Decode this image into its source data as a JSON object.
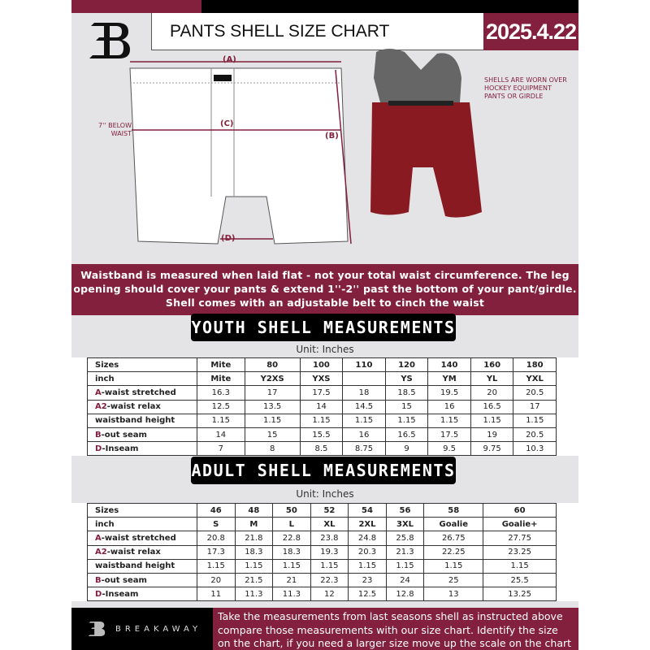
{
  "header": {
    "title": "PANTS SHELL SIZE CHART",
    "date": "2025.4.22",
    "logo_letter": "B"
  },
  "diagram": {
    "label_a": "(A)",
    "label_b": "(B)",
    "label_c": "(C)",
    "label_d": "(D)",
    "below_waist": "7'' BELOW WAIST",
    "note": "SHELLS ARE WORN OVER HOCKEY EQUIPMENT PANTS OR GIRDLE"
  },
  "banner": {
    "line1": "Waistband is measured when laid flat - not your total waist circumference. The leg",
    "line2": "opening should cover your pants & extend 1''-2'' past the bottom of your pant/girdle.",
    "line3": "Shell comes with an adjustable belt to cinch the waist"
  },
  "youth": {
    "title": "YOUTH SHELL MEASUREMENTS",
    "unit": "Unit: Inches",
    "rows": [
      {
        "prefix": "",
        "label": "Sizes",
        "values": [
          "Mite",
          "80",
          "100",
          "110",
          "120",
          "140",
          "160",
          "180"
        ]
      },
      {
        "prefix": "",
        "label": "inch",
        "values": [
          "Mite",
          "Y2XS",
          "YXS",
          "",
          "YS",
          "YM",
          "YL",
          "YXL"
        ]
      },
      {
        "prefix": "A",
        "label": "-waist stretched",
        "values": [
          "16.3",
          "17",
          "17.5",
          "18",
          "18.5",
          "19.5",
          "20",
          "20.5"
        ]
      },
      {
        "prefix": "A2",
        "label": "-waist relax",
        "values": [
          "12.5",
          "13.5",
          "14",
          "14.5",
          "15",
          "16",
          "16.5",
          "17"
        ]
      },
      {
        "prefix": "",
        "label": "waistband height",
        "values": [
          "1.15",
          "1.15",
          "1.15",
          "1.15",
          "1.15",
          "1.15",
          "1.15",
          "1.15"
        ]
      },
      {
        "prefix": "B",
        "label": "-out seam",
        "values": [
          "14",
          "15",
          "15.5",
          "16",
          "16.5",
          "17.5",
          "19",
          "20.5"
        ]
      },
      {
        "prefix": "D",
        "label": "-Inseam",
        "values": [
          "7",
          "8",
          "8.5",
          "8.75",
          "9",
          "9.5",
          "9.75",
          "10.3"
        ]
      }
    ]
  },
  "adult": {
    "title": "ADULT SHELL MEASUREMENTS",
    "unit": "Unit: Inches",
    "rows": [
      {
        "prefix": "",
        "label": "Sizes",
        "values": [
          "46",
          "48",
          "50",
          "52",
          "54",
          "56",
          "58",
          "60"
        ]
      },
      {
        "prefix": "",
        "label": "inch",
        "values": [
          "S",
          "M",
          "L",
          "XL",
          "2XL",
          "3XL",
          "Goalie",
          "Goalie+"
        ]
      },
      {
        "prefix": "A",
        "label": "-waist stretched",
        "values": [
          "20.8",
          "21.8",
          "22.8",
          "23.8",
          "24.8",
          "25.8",
          "26.75",
          "27.75"
        ]
      },
      {
        "prefix": "A2",
        "label": "-waist relax",
        "values": [
          "17.3",
          "18.3",
          "18.3",
          "19.3",
          "20.3",
          "21.3",
          "22.25",
          "23.25"
        ]
      },
      {
        "prefix": "",
        "label": "waistband height",
        "values": [
          "1.15",
          "1.15",
          "1.15",
          "1.15",
          "1.15",
          "1.15",
          "1.15",
          "1.15"
        ]
      },
      {
        "prefix": "B",
        "label": "-out seam",
        "values": [
          "20",
          "21.5",
          "21",
          "22.3",
          "23",
          "24",
          "25",
          "25.5"
        ]
      },
      {
        "prefix": "D",
        "label": "-Inseam",
        "values": [
          "11",
          "11.3",
          "11.3",
          "12",
          "12.5",
          "12.8",
          "13",
          "13.25"
        ]
      }
    ]
  },
  "footer": {
    "brand": "BREAKAWAY",
    "line1": "Take the measurements from last seasons shell as instructed above",
    "line2": "compare those measurements  with our size chart. Identify the size",
    "line3": "on the chart, if you need a larger size move up the scale on the chart"
  },
  "colors": {
    "maroon": "#82203d",
    "black": "#000000",
    "background": "#e4e4e6"
  }
}
